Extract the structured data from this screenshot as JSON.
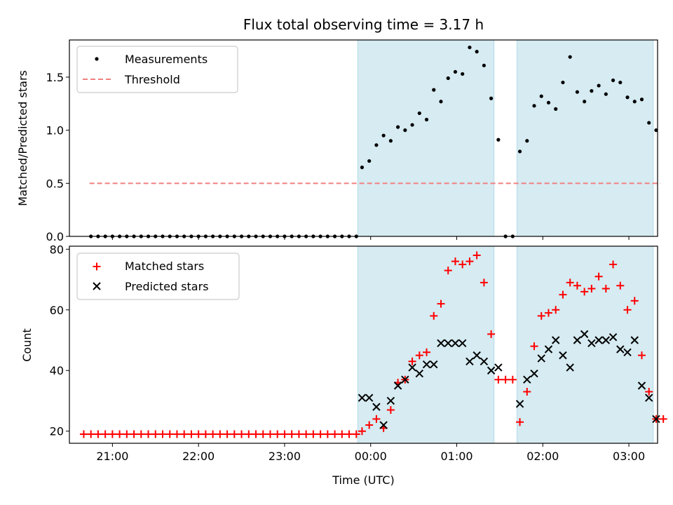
{
  "chart_data": [
    {
      "type": "scatter",
      "title": "Flux total observing time = 3.17 h",
      "xlabel": "",
      "ylabel": "Matched/Predicted stars",
      "ylim": [
        0,
        1.85
      ],
      "yticks": [
        "0.0",
        "0.5",
        "1.0",
        "1.5"
      ],
      "ytick_values": [
        0,
        0.5,
        1.0,
        1.5
      ],
      "xlim": [
        "20:30",
        "03:20"
      ],
      "legend_position": "top-left",
      "legend": [
        "Measurements",
        "Threshold"
      ],
      "shaded_intervals": [
        [
          "23:51",
          "01:26"
        ],
        [
          "01:42",
          "03:17"
        ]
      ],
      "threshold": {
        "name": "Threshold",
        "y": 0.5,
        "x_start": "20:44",
        "x_end": "03:22",
        "color": "#f08080"
      },
      "series": [
        {
          "name": "Measurements",
          "color": "#000000",
          "x": [
            "20:45",
            "20:50",
            "20:55",
            "21:00",
            "21:05",
            "21:10",
            "21:15",
            "21:20",
            "21:25",
            "21:30",
            "21:35",
            "21:40",
            "21:45",
            "21:50",
            "21:55",
            "22:00",
            "22:05",
            "22:10",
            "22:15",
            "22:20",
            "22:25",
            "22:30",
            "22:35",
            "22:40",
            "22:45",
            "22:50",
            "22:55",
            "23:00",
            "23:05",
            "23:10",
            "23:15",
            "23:20",
            "23:25",
            "23:30",
            "23:35",
            "23:40",
            "23:45",
            "23:50",
            "23:54",
            "23:59",
            "00:04",
            "00:09",
            "00:14",
            "00:19",
            "00:24",
            "00:29",
            "00:34",
            "00:39",
            "00:44",
            "00:49",
            "00:54",
            "00:59",
            "01:04",
            "01:09",
            "01:14",
            "01:19",
            "01:24",
            "01:29",
            "01:34",
            "01:39",
            "01:44",
            "01:49",
            "01:54",
            "01:59",
            "02:04",
            "02:09",
            "02:14",
            "02:19",
            "02:24",
            "02:29",
            "02:34",
            "02:39",
            "02:44",
            "02:49",
            "02:54",
            "02:59",
            "03:04",
            "03:09",
            "03:14",
            "03:19"
          ],
          "y": [
            0,
            0,
            0,
            0,
            0,
            0,
            0,
            0,
            0,
            0,
            0,
            0,
            0,
            0,
            0,
            0,
            0,
            0,
            0,
            0,
            0,
            0,
            0,
            0,
            0,
            0,
            0,
            0,
            0,
            0,
            0,
            0,
            0,
            0,
            0,
            0,
            0,
            0,
            0.65,
            0.71,
            0.86,
            0.95,
            0.9,
            1.03,
            1.0,
            1.05,
            1.16,
            1.1,
            1.38,
            1.27,
            1.49,
            1.55,
            1.53,
            1.78,
            1.74,
            1.61,
            1.3,
            0.91,
            0,
            0,
            0.8,
            0.9,
            1.23,
            1.32,
            1.26,
            1.2,
            1.45,
            1.69,
            1.36,
            1.27,
            1.37,
            1.42,
            1.34,
            1.47,
            1.45,
            1.31,
            1.27,
            1.29,
            1.07,
            1.0
          ]
        }
      ]
    },
    {
      "type": "scatter",
      "title": "",
      "xlabel": "Time (UTC)",
      "ylabel": "Count",
      "ylim": [
        16,
        81
      ],
      "yticks": [
        "20",
        "40",
        "60",
        "80"
      ],
      "ytick_values": [
        20,
        40,
        60,
        80
      ],
      "xlim": [
        "20:30",
        "03:20"
      ],
      "xticks": [
        "21:00",
        "22:00",
        "23:00",
        "00:00",
        "01:00",
        "02:00",
        "03:00"
      ],
      "legend_position": "top-left",
      "legend": [
        "Matched stars",
        "Predicted stars"
      ],
      "shaded_intervals": [
        [
          "23:51",
          "01:26"
        ],
        [
          "01:42",
          "03:17"
        ]
      ],
      "series": [
        {
          "name": "Matched stars",
          "marker": "+",
          "color": "#ff0000",
          "x": [
            "20:40",
            "20:45",
            "20:50",
            "20:55",
            "21:00",
            "21:05",
            "21:10",
            "21:15",
            "21:20",
            "21:25",
            "21:30",
            "21:35",
            "21:40",
            "21:45",
            "21:50",
            "21:55",
            "22:00",
            "22:05",
            "22:10",
            "22:15",
            "22:20",
            "22:25",
            "22:30",
            "22:35",
            "22:40",
            "22:45",
            "22:50",
            "22:55",
            "23:00",
            "23:05",
            "23:10",
            "23:15",
            "23:20",
            "23:25",
            "23:30",
            "23:35",
            "23:40",
            "23:45",
            "23:50",
            "23:54",
            "23:59",
            "00:04",
            "00:09",
            "00:14",
            "00:19",
            "00:24",
            "00:29",
            "00:34",
            "00:39",
            "00:44",
            "00:49",
            "00:54",
            "00:59",
            "01:04",
            "01:09",
            "01:14",
            "01:19",
            "01:24",
            "01:29",
            "01:34",
            "01:39",
            "01:44",
            "01:49",
            "01:54",
            "01:59",
            "02:04",
            "02:09",
            "02:14",
            "02:19",
            "02:24",
            "02:29",
            "02:34",
            "02:39",
            "02:44",
            "02:49",
            "02:54",
            "02:59",
            "03:04",
            "03:09",
            "03:14",
            "03:19",
            "03:24"
          ],
          "y": [
            19,
            19,
            19,
            19,
            19,
            19,
            19,
            19,
            19,
            19,
            19,
            19,
            19,
            19,
            19,
            19,
            19,
            19,
            19,
            19,
            19,
            19,
            19,
            19,
            19,
            19,
            19,
            19,
            19,
            19,
            19,
            19,
            19,
            19,
            19,
            19,
            19,
            19,
            19,
            20,
            22,
            24,
            21,
            27,
            36,
            37,
            43,
            45,
            46,
            58,
            62,
            73,
            76,
            75,
            76,
            78,
            69,
            52,
            37,
            37,
            37,
            23,
            33,
            48,
            58,
            59,
            60,
            65,
            69,
            68,
            66,
            67,
            71,
            67,
            75,
            68,
            60,
            63,
            45,
            33,
            24,
            24
          ]
        },
        {
          "name": "Predicted stars",
          "marker": "x",
          "color": "#000000",
          "x": [
            "23:54",
            "23:59",
            "00:04",
            "00:09",
            "00:14",
            "00:19",
            "00:24",
            "00:29",
            "00:34",
            "00:39",
            "00:44",
            "00:49",
            "00:54",
            "00:59",
            "01:04",
            "01:09",
            "01:14",
            "01:19",
            "01:24",
            "01:29",
            "01:44",
            "01:49",
            "01:54",
            "01:59",
            "02:04",
            "02:09",
            "02:14",
            "02:19",
            "02:24",
            "02:29",
            "02:34",
            "02:39",
            "02:44",
            "02:49",
            "02:54",
            "02:59",
            "03:04",
            "03:09",
            "03:14",
            "03:19"
          ],
          "y": [
            31,
            31,
            28,
            22,
            30,
            35,
            37,
            41,
            39,
            42,
            42,
            49,
            49,
            49,
            49,
            43,
            45,
            43,
            40,
            41,
            29,
            37,
            39,
            44,
            47,
            50,
            45,
            41,
            50,
            52,
            49,
            50,
            50,
            51,
            47,
            46,
            50,
            35,
            31,
            24
          ]
        }
      ]
    }
  ]
}
